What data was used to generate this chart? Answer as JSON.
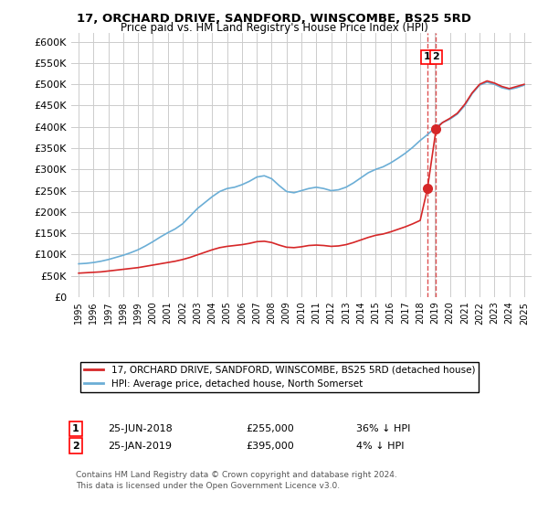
{
  "title": "17, ORCHARD DRIVE, SANDFORD, WINSCOMBE, BS25 5RD",
  "subtitle": "Price paid vs. HM Land Registry's House Price Index (HPI)",
  "hpi_label": "HPI: Average price, detached house, North Somerset",
  "price_label": "17, ORCHARD DRIVE, SANDFORD, WINSCOMBE, BS25 5RD (detached house)",
  "hpi_color": "#6baed6",
  "price_color": "#d62728",
  "dashed_color": "#d62728",
  "background_color": "#ffffff",
  "grid_color": "#cccccc",
  "ylim": [
    0,
    620000
  ],
  "yticks": [
    0,
    50000,
    100000,
    150000,
    200000,
    250000,
    300000,
    350000,
    400000,
    450000,
    500000,
    550000,
    600000
  ],
  "ytick_labels": [
    "£0",
    "£50K",
    "£100K",
    "£150K",
    "£200K",
    "£250K",
    "£300K",
    "£350K",
    "£400K",
    "£450K",
    "£500K",
    "£550K",
    "£600K"
  ],
  "sale1_date": 2018.49,
  "sale1_price": 255000,
  "sale1_label": "1",
  "sale1_text": "25-JUN-2018",
  "sale1_amount": "£255,000",
  "sale1_pct": "36% ↓ HPI",
  "sale2_date": 2019.07,
  "sale2_price": 395000,
  "sale2_label": "2",
  "sale2_text": "25-JAN-2019",
  "sale2_amount": "£395,000",
  "sale2_pct": "4% ↓ HPI",
  "footnote1": "Contains HM Land Registry data © Crown copyright and database right 2024.",
  "footnote2": "This data is licensed under the Open Government Licence v3.0.",
  "hpi_x": [
    1995.0,
    1995.5,
    1996.0,
    1996.5,
    1997.0,
    1997.5,
    1998.0,
    1998.5,
    1999.0,
    1999.5,
    2000.0,
    2000.5,
    2001.0,
    2001.5,
    2002.0,
    2002.5,
    2003.0,
    2003.5,
    2004.0,
    2004.5,
    2005.0,
    2005.5,
    2006.0,
    2006.5,
    2007.0,
    2007.5,
    2008.0,
    2008.5,
    2009.0,
    2009.5,
    2010.0,
    2010.5,
    2011.0,
    2011.5,
    2012.0,
    2012.5,
    2013.0,
    2013.5,
    2014.0,
    2014.5,
    2015.0,
    2015.5,
    2016.0,
    2016.5,
    2017.0,
    2017.5,
    2018.0,
    2018.5,
    2019.0,
    2019.5,
    2020.0,
    2020.5,
    2021.0,
    2021.5,
    2022.0,
    2022.5,
    2023.0,
    2023.5,
    2024.0,
    2024.5,
    2025.0
  ],
  "hpi_y": [
    78000,
    79000,
    81000,
    84000,
    88000,
    93000,
    98000,
    104000,
    111000,
    120000,
    130000,
    141000,
    151000,
    160000,
    172000,
    190000,
    208000,
    222000,
    236000,
    248000,
    255000,
    258000,
    264000,
    272000,
    282000,
    285000,
    278000,
    262000,
    248000,
    245000,
    250000,
    255000,
    258000,
    255000,
    250000,
    252000,
    258000,
    268000,
    280000,
    292000,
    300000,
    306000,
    315000,
    326000,
    338000,
    352000,
    368000,
    382000,
    398000,
    410000,
    418000,
    430000,
    450000,
    478000,
    498000,
    505000,
    500000,
    492000,
    488000,
    492000,
    498000
  ],
  "price_x": [
    1995.0,
    1995.5,
    1996.0,
    1996.5,
    1997.0,
    1997.5,
    1998.0,
    1998.5,
    1999.0,
    1999.5,
    2000.0,
    2000.5,
    2001.0,
    2001.5,
    2002.0,
    2002.5,
    2003.0,
    2003.5,
    2004.0,
    2004.5,
    2005.0,
    2005.5,
    2006.0,
    2006.5,
    2007.0,
    2007.5,
    2008.0,
    2008.5,
    2009.0,
    2009.5,
    2010.0,
    2010.5,
    2011.0,
    2011.5,
    2012.0,
    2012.5,
    2013.0,
    2013.5,
    2014.0,
    2014.5,
    2015.0,
    2015.5,
    2016.0,
    2016.5,
    2017.0,
    2017.5,
    2018.0,
    2018.49,
    2019.07,
    2019.5,
    2020.0,
    2020.5,
    2021.0,
    2021.5,
    2022.0,
    2022.5,
    2023.0,
    2023.5,
    2024.0,
    2024.5,
    2025.0
  ],
  "price_y": [
    56000,
    57000,
    58000,
    59000,
    61000,
    63000,
    65000,
    67000,
    69000,
    72000,
    75000,
    78000,
    81000,
    84000,
    88000,
    93000,
    99000,
    105000,
    111000,
    116000,
    119000,
    121000,
    123000,
    126000,
    130000,
    131000,
    128000,
    122000,
    117000,
    116000,
    118000,
    121000,
    122000,
    121000,
    119000,
    120000,
    123000,
    128000,
    134000,
    140000,
    145000,
    148000,
    153000,
    159000,
    165000,
    172000,
    180000,
    255000,
    395000,
    410000,
    420000,
    432000,
    453000,
    480000,
    500000,
    508000,
    503000,
    495000,
    490000,
    495000,
    500000
  ]
}
